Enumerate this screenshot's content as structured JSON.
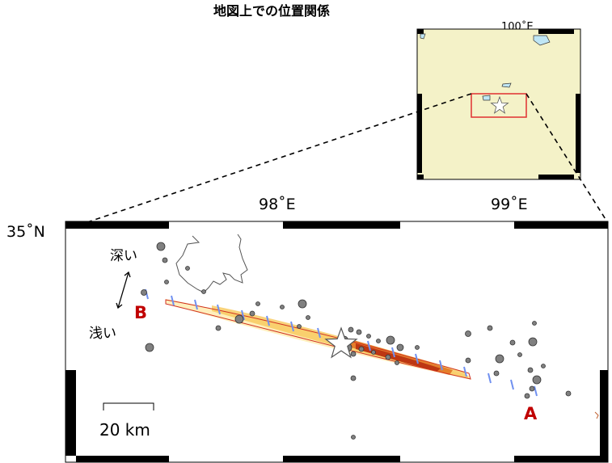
{
  "inset": {
    "title": "地図上での位置関係",
    "lon_label": "100˚E",
    "land_color": "#f4f2c8",
    "water_color": "#bfe6f5",
    "box_color": "#e03030"
  },
  "main_map": {
    "lon_labels": [
      "98˚E",
      "99˚E"
    ],
    "lat_label": "35˚N",
    "depth_deep": "深い",
    "depth_shallow": "浅い",
    "end_a": "A",
    "end_b": "B",
    "scale_label": "20 km",
    "accent_color": "#c00000",
    "event_color": "#808080",
    "section_color": "#7090f0"
  }
}
